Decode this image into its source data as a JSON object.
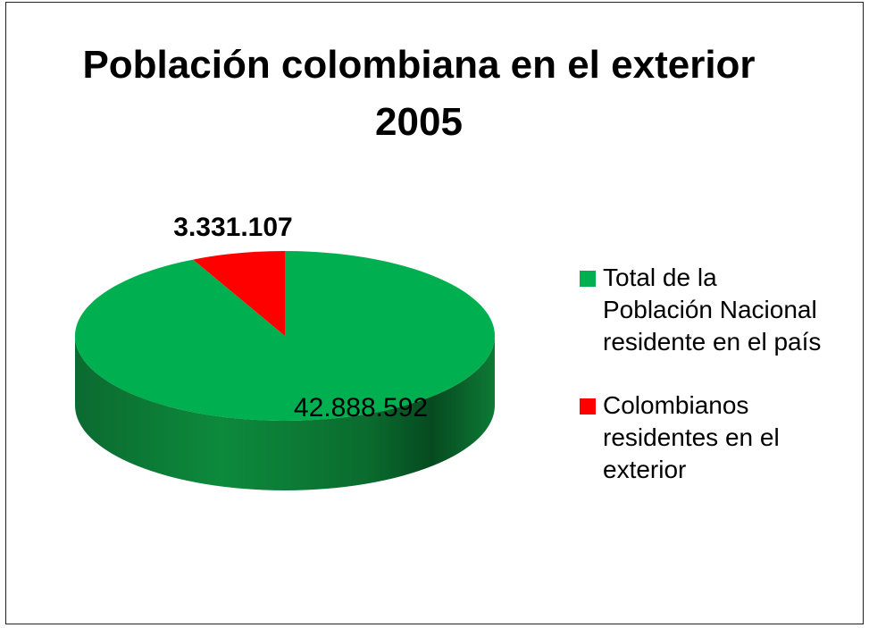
{
  "chart_data": {
    "type": "pie",
    "title": [
      "Población colombiana en el exterior",
      "2005"
    ],
    "labels": [
      "Total de la Población Nacional residente en el país",
      "Colombianos residentes en el exterior"
    ],
    "values": [
      42888592,
      3331107
    ],
    "data_labels": [
      "42.888.592",
      "3.331.107"
    ],
    "colors": [
      "#00b050",
      "#ff0000"
    ],
    "legend_lines": [
      [
        "Total de la",
        "Población Nacional",
        "residente en el país"
      ],
      [
        "Colombianos",
        "residentes en el",
        "exterior"
      ]
    ],
    "legend_position": "right",
    "style": "3d"
  }
}
